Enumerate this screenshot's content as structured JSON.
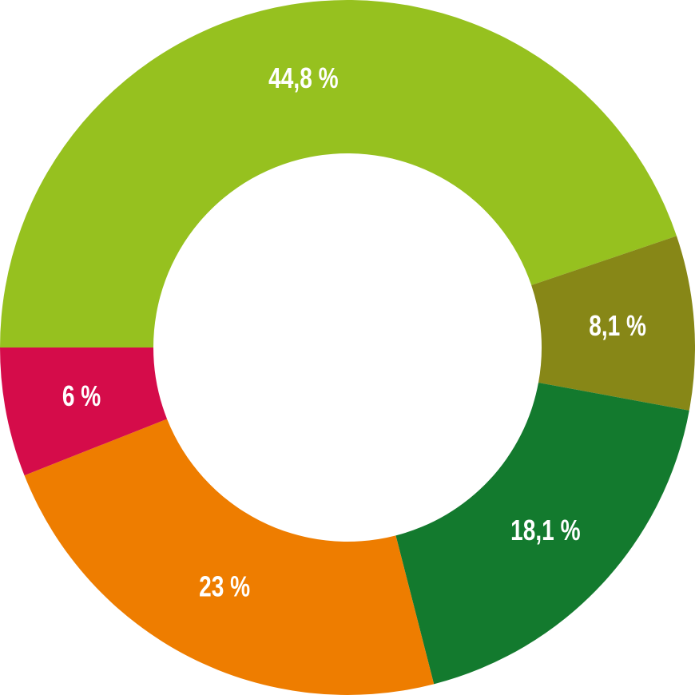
{
  "chart_data": {
    "type": "donut",
    "values": [
      44.8,
      8.1,
      18.1,
      23,
      6
    ],
    "value_labels": [
      "44,8 %",
      "8,1 %",
      "18,1 %",
      "23 %",
      "6 %"
    ],
    "colors": [
      "#96c11f",
      "#878717",
      "#137a2e",
      "#ee7d00",
      "#d50c4a"
    ]
  }
}
